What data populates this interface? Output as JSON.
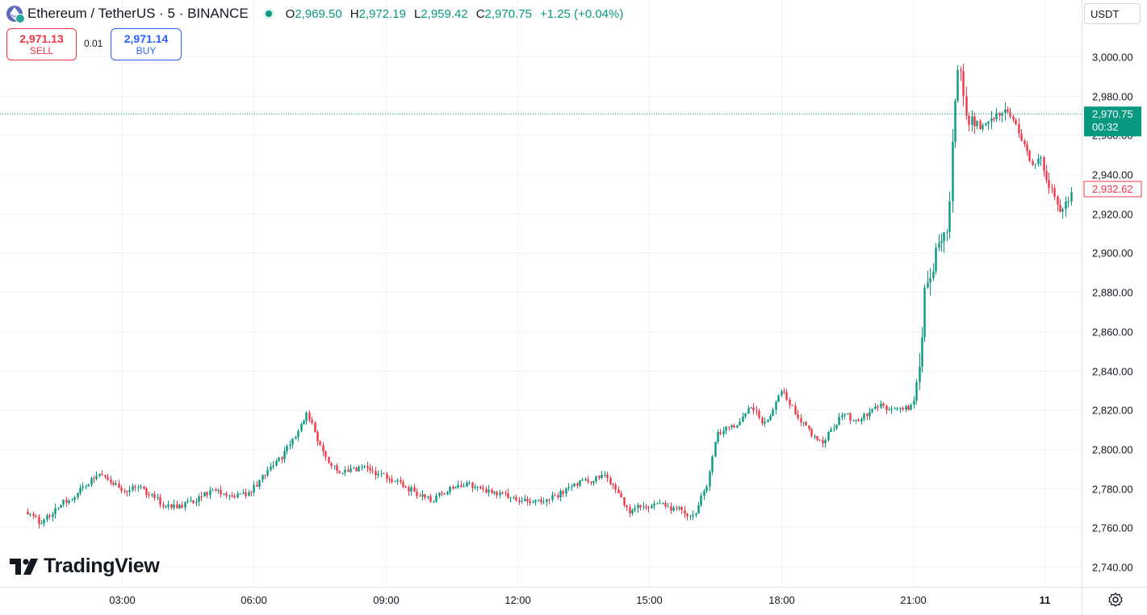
{
  "header": {
    "symbol": "Ethereum / TetherUS · 5 · BINANCE",
    "open_label": "O",
    "open": "2,969.50",
    "high_label": "H",
    "high": "2,972.19",
    "low_label": "L",
    "low": "2,959.42",
    "close_label": "C",
    "close": "2,970.75",
    "change": "+1.25 (+0.04%)"
  },
  "trade": {
    "sell_price": "2,971.13",
    "sell_label": "SELL",
    "spread": "0.01",
    "buy_price": "2,971.14",
    "buy_label": "BUY"
  },
  "currency_label": "USDT",
  "last_price_label": {
    "price": "2,970.75",
    "countdown": "00:32"
  },
  "prev_close_label": {
    "price": "2,932.62"
  },
  "logo_text": "TradingView",
  "colors": {
    "up": "#089981",
    "down": "#f23645",
    "grid": "#f0f3fa",
    "text": "#131722"
  },
  "chart_data": {
    "type": "candlestick",
    "interval": "5",
    "ylim": [
      2730,
      3010
    ],
    "y_ticks": [
      2740,
      2760,
      2780,
      2800,
      2820,
      2840,
      2860,
      2880,
      2900,
      2920,
      2940,
      2960,
      2980,
      3000
    ],
    "y_tick_labels": [
      "2,740.00",
      "2,760.00",
      "2,780.00",
      "2,800.00",
      "2,820.00",
      "2,840.00",
      "2,860.00",
      "2,880.00",
      "2,900.00",
      "2,920.00",
      "2,940.00",
      "2,960.00",
      "2,980.00",
      "3,000.00"
    ],
    "x_range_hours": [
      0.85,
      24.6
    ],
    "x_ticks": [
      {
        "hour": 3,
        "label": "03:00"
      },
      {
        "hour": 6,
        "label": "06:00"
      },
      {
        "hour": 9,
        "label": "09:00"
      },
      {
        "hour": 12,
        "label": "12:00"
      },
      {
        "hour": 15,
        "label": "15:00"
      },
      {
        "hour": 18,
        "label": "18:00"
      },
      {
        "hour": 21,
        "label": "21:00"
      },
      {
        "hour": 24,
        "label": "11",
        "bold": true
      }
    ],
    "price_path_hours": [
      0.85,
      1.1,
      1.6,
      2.0,
      2.5,
      3.0,
      3.3,
      3.9,
      4.3,
      5.0,
      5.8,
      6.3,
      6.7,
      7.2,
      7.6,
      8.0,
      8.5,
      9.0,
      10.0,
      10.7,
      11.3,
      12.0,
      12.6,
      13.0,
      13.4,
      14.0,
      14.5,
      14.9,
      15.5,
      16.0,
      16.3,
      16.5,
      17.0,
      17.3,
      17.6,
      18.0,
      18.3,
      18.5,
      18.9,
      19.4,
      19.7,
      20.2,
      20.7,
      21.0,
      21.2,
      21.25,
      21.6,
      21.8,
      21.95,
      22.05,
      22.2,
      22.6,
      23.1,
      23.5,
      23.7,
      23.85,
      24.3,
      24.6
    ],
    "price_path_values": [
      2768,
      2762,
      2772,
      2778,
      2788,
      2778,
      2782,
      2772,
      2770,
      2778,
      2776,
      2788,
      2798,
      2818,
      2796,
      2788,
      2790,
      2786,
      2774,
      2782,
      2779,
      2773,
      2774,
      2778,
      2783,
      2786,
      2768,
      2772,
      2770,
      2766,
      2782,
      2808,
      2812,
      2822,
      2812,
      2830,
      2818,
      2812,
      2803,
      2818,
      2814,
      2822,
      2820,
      2822,
      2860,
      2882,
      2905,
      2915,
      2985,
      2995,
      2970,
      2962,
      2973,
      2958,
      2945,
      2950,
      2922,
      2930
    ],
    "current_price": 2970.75,
    "prev_close_price": 2932.62,
    "candle_spacing_px": 3.42
  }
}
